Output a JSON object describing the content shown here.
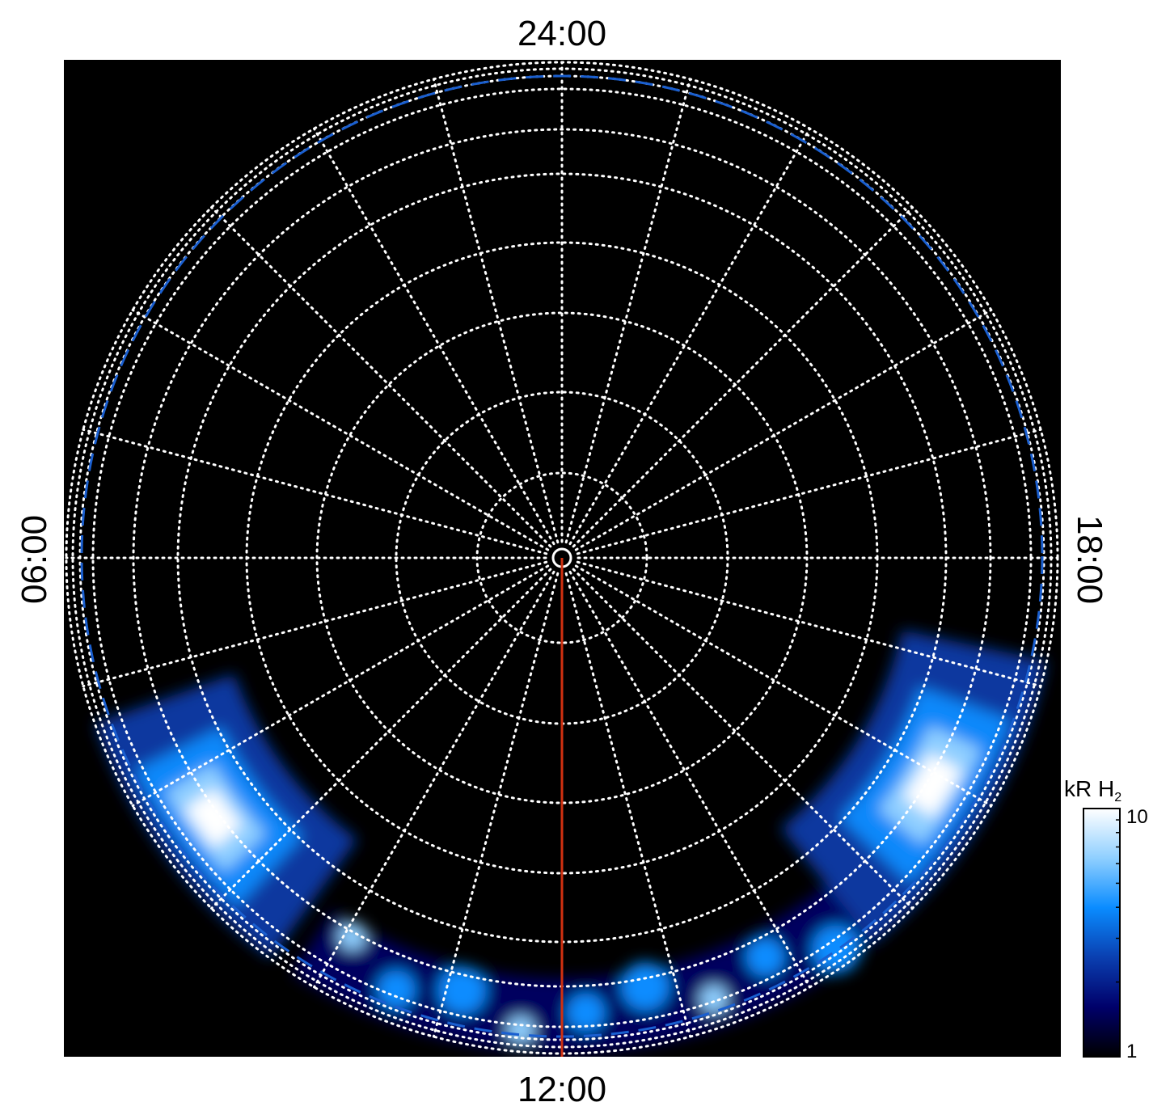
{
  "chart_data": {
    "type": "heatmap",
    "projection": "polar",
    "background_color": "#000000",
    "local_time_labels": {
      "top": "24:00",
      "left": "06:00",
      "bottom": "12:00",
      "right": "18:00"
    },
    "grid": true,
    "grid_style": "white dotted",
    "meridian_spacing_hours": 1,
    "reference_oval_color": "#1a5fd0",
    "reference_meridian": {
      "local_time": "12:00",
      "color": "#d03010"
    },
    "colorbar": {
      "label": "kR H",
      "label_subscript": "2",
      "scale": "log",
      "range": [
        1,
        10
      ],
      "tick_labels": [
        "10",
        "1"
      ],
      "colors": [
        "#000000",
        "#00006a",
        "#0a3fb0",
        "#0a8cff",
        "#8fcfff",
        "#ffffff"
      ]
    },
    "emission_regions": [
      {
        "local_time_range": [
          7.3,
          9.6
        ],
        "peak_intensity_kR": 10
      },
      {
        "local_time_range": [
          14.6,
          17.2
        ],
        "peak_intensity_kR": 10
      },
      {
        "local_time_range": [
          9.8,
          14.6
        ],
        "peak_intensity_kR": 6
      }
    ]
  }
}
